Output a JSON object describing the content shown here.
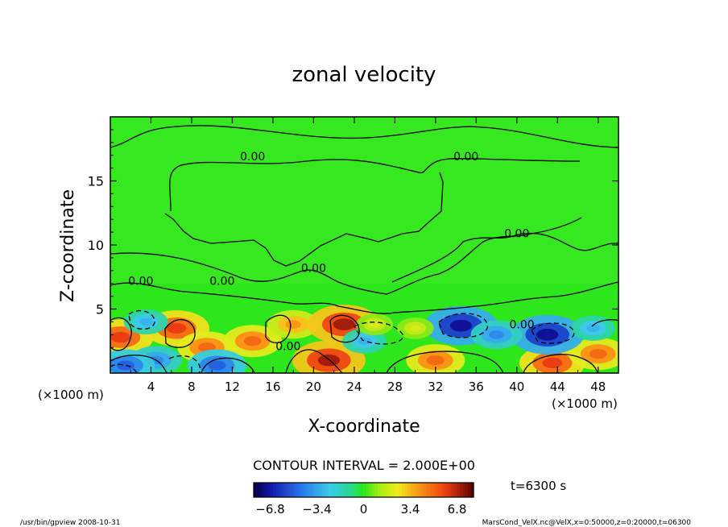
{
  "chart_data": {
    "type": "heatmap",
    "title": "zonal velocity",
    "xlabel": "X-coordinate",
    "ylabel": "Z-coordinate",
    "x_units": "(×1000 m)",
    "y_units": "(×1000 m)",
    "xlim": [
      0,
      50
    ],
    "ylim": [
      0,
      20
    ],
    "x_ticks": [
      4,
      8,
      12,
      16,
      20,
      24,
      28,
      32,
      36,
      40,
      44,
      48
    ],
    "y_ticks": [
      5,
      10,
      15
    ],
    "contour_interval_text": "CONTOUR INTERVAL = 2.000E+00",
    "time_label": "t=6300 s",
    "colorbar": {
      "range": [
        -8,
        8
      ],
      "ticks": [
        "-6.8",
        "-3.4",
        "0",
        "3.4",
        "6.8"
      ]
    },
    "contour_labels": [
      {
        "x": 14.0,
        "z": 16.6,
        "text": "0.00"
      },
      {
        "x": 35.0,
        "z": 16.6,
        "text": "0.00"
      },
      {
        "x": 40.0,
        "z": 10.6,
        "text": "0.00"
      },
      {
        "x": 20.0,
        "z": 7.9,
        "text": "0.00"
      },
      {
        "x": 11.0,
        "z": 6.9,
        "text": "0.00"
      },
      {
        "x": 3.0,
        "z": 6.9,
        "text": "0.00"
      },
      {
        "x": 40.5,
        "z": 3.5,
        "text": "0.00"
      },
      {
        "x": 17.5,
        "z": 1.8,
        "text": "0.00"
      }
    ],
    "features": [
      {
        "x": 1.0,
        "z": 2.8,
        "value": 6
      },
      {
        "x": 6.5,
        "z": 3.5,
        "value": 6
      },
      {
        "x": 9.5,
        "z": 2.0,
        "value": 5
      },
      {
        "x": 14.0,
        "z": 2.5,
        "value": 5
      },
      {
        "x": 18.0,
        "z": 3.8,
        "value": 4
      },
      {
        "x": 23.0,
        "z": 3.8,
        "value": 7
      },
      {
        "x": 21.5,
        "z": 1.0,
        "value": 7
      },
      {
        "x": 32.0,
        "z": 1.0,
        "value": 5
      },
      {
        "x": 43.5,
        "z": 0.8,
        "value": 6
      },
      {
        "x": 48.0,
        "z": 1.5,
        "value": 5
      },
      {
        "x": 34.5,
        "z": 3.7,
        "value": -7
      },
      {
        "x": 43.0,
        "z": 3.0,
        "value": -7
      },
      {
        "x": 38.0,
        "z": 3.0,
        "value": -4
      },
      {
        "x": 3.5,
        "z": 4.0,
        "value": -3
      },
      {
        "x": 4.5,
        "z": 1.0,
        "value": -4
      },
      {
        "x": 1.5,
        "z": 0.6,
        "value": -5
      },
      {
        "x": 10.5,
        "z": 0.6,
        "value": -5
      },
      {
        "x": 25.0,
        "z": 2.5,
        "value": -3
      },
      {
        "x": 47.5,
        "z": 3.5,
        "value": -3
      },
      {
        "x": 30.0,
        "z": 3.5,
        "value": 2
      },
      {
        "x": 26.0,
        "z": 3.8,
        "value": 2
      }
    ]
  },
  "footer": {
    "left": "/usr/bin/gpview  2008-10-31",
    "right": "MarsCond_VelX.nc@VelX,x=0:50000,z=0:20000,t=06300"
  },
  "colors": {
    "background": "#ffffff",
    "neutral": "#2ee61c",
    "frame": "#000000"
  }
}
